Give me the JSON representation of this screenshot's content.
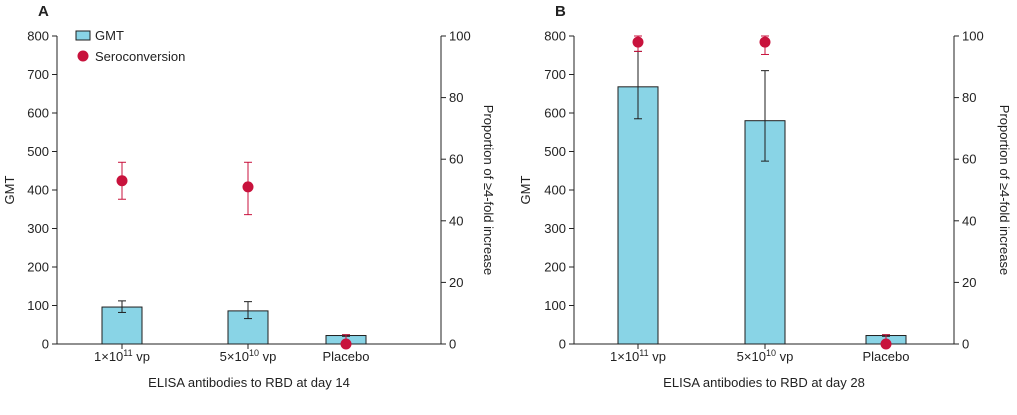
{
  "colors": {
    "bar_fill": "#89d4e6",
    "bar_stroke": "#1e1e1e",
    "marker": "#c8123c",
    "axis": "#222222"
  },
  "chart_data": [
    {
      "panel": "A",
      "type": "bar",
      "xlabel": "ELISA antibodies to RBD at day 14",
      "ylabel": "GMT",
      "y2label": "Proportion of ≥4-fold increase",
      "ylim": [
        0,
        800
      ],
      "y2lim": [
        0,
        100
      ],
      "yticks": [
        "0",
        "100",
        "200",
        "300",
        "400",
        "500",
        "600",
        "700",
        "800"
      ],
      "y2ticks": [
        "0",
        "20",
        "40",
        "60",
        "80",
        "100"
      ],
      "categories": [
        {
          "base": "1×10",
          "sup": "11",
          "unit": " vp"
        },
        {
          "base": "5×10",
          "sup": "10",
          "unit": " vp"
        },
        {
          "base": "Placebo",
          "sup": "",
          "unit": ""
        }
      ],
      "legend": {
        "bar": "GMT",
        "marker": "Seroconversion",
        "placement": "top-left"
      },
      "series": [
        {
          "name": "GMT",
          "axis": "left",
          "values": [
            96,
            86,
            22
          ],
          "err_low": [
            82,
            66,
            20
          ],
          "err_high": [
            112,
            110,
            24
          ]
        },
        {
          "name": "Seroconversion",
          "axis": "right",
          "values": [
            53,
            51,
            0
          ],
          "err_low": [
            47,
            42,
            0
          ],
          "err_high": [
            59,
            59,
            3
          ]
        }
      ]
    },
    {
      "panel": "B",
      "type": "bar",
      "xlabel": "ELISA antibodies to RBD at day 28",
      "ylabel": "GMT",
      "y2label": "Proportion of ≥4-fold increase",
      "ylim": [
        0,
        800
      ],
      "y2lim": [
        0,
        100
      ],
      "yticks": [
        "0",
        "100",
        "200",
        "300",
        "400",
        "500",
        "600",
        "700",
        "800"
      ],
      "y2ticks": [
        "0",
        "20",
        "40",
        "60",
        "80",
        "100"
      ],
      "categories": [
        {
          "base": "1×10",
          "sup": "11",
          "unit": " vp"
        },
        {
          "base": "5×10",
          "sup": "10",
          "unit": " vp"
        },
        {
          "base": "Placebo",
          "sup": "",
          "unit": ""
        }
      ],
      "series": [
        {
          "name": "GMT",
          "axis": "left",
          "values": [
            668,
            580,
            22
          ],
          "err_low": [
            585,
            475,
            20
          ],
          "err_high": [
            760,
            710,
            24
          ]
        },
        {
          "name": "Seroconversion",
          "axis": "right",
          "values": [
            98,
            98,
            0
          ],
          "err_low": [
            95,
            94,
            0
          ],
          "err_high": [
            100,
            100,
            3
          ]
        }
      ]
    }
  ]
}
